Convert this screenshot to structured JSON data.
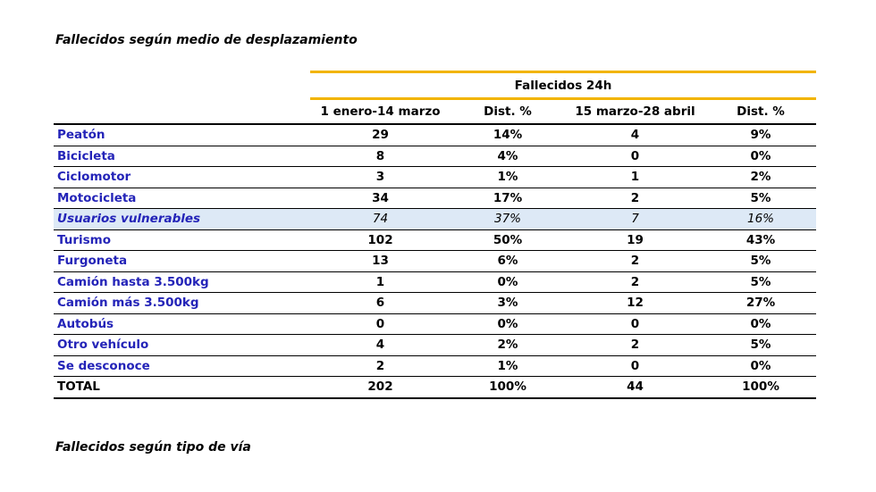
{
  "titles": {
    "main": "Fallecidos según medio de desplazamiento",
    "secondary": "Fallecidos según tipo de vía"
  },
  "table": {
    "group_header": "Fallecidos 24h",
    "columns": [
      "1 enero-14 marzo",
      "Dist. %",
      "15 marzo-28 abril",
      "Dist. %"
    ],
    "rows": [
      {
        "label": "Peatón",
        "values": [
          "29",
          "14%",
          "4",
          "9%"
        ]
      },
      {
        "label": "Bicicleta",
        "values": [
          "8",
          "4%",
          "0",
          "0%"
        ]
      },
      {
        "label": "Ciclomotor",
        "values": [
          "3",
          "1%",
          "1",
          "2%"
        ]
      },
      {
        "label": "Motocicleta",
        "values": [
          "34",
          "17%",
          "2",
          "5%"
        ]
      },
      {
        "label": "Usuarios vulnerables",
        "values": [
          "74",
          "37%",
          "7",
          "16%"
        ]
      },
      {
        "label": "Turismo",
        "values": [
          "102",
          "50%",
          "19",
          "43%"
        ]
      },
      {
        "label": "Furgoneta",
        "values": [
          "13",
          "6%",
          "2",
          "5%"
        ]
      },
      {
        "label": "Camión hasta 3.500kg",
        "values": [
          "1",
          "0%",
          "2",
          "5%"
        ]
      },
      {
        "label": "Camión más 3.500kg",
        "values": [
          "6",
          "3%",
          "12",
          "27%"
        ]
      },
      {
        "label": "Autobús",
        "values": [
          "0",
          "0%",
          "0",
          "0%"
        ]
      },
      {
        "label": "Otro vehículo",
        "values": [
          "4",
          "2%",
          "2",
          "5%"
        ]
      },
      {
        "label": "Se desconoce",
        "values": [
          "2",
          "1%",
          "0",
          "0%"
        ]
      }
    ],
    "total": {
      "label": "TOTAL",
      "values": [
        "202",
        "100%",
        "44",
        "100%"
      ]
    }
  },
  "colors": {
    "accent": "#f2b400",
    "label_text": "#2424b8",
    "highlight_row": "#dde9f6"
  }
}
